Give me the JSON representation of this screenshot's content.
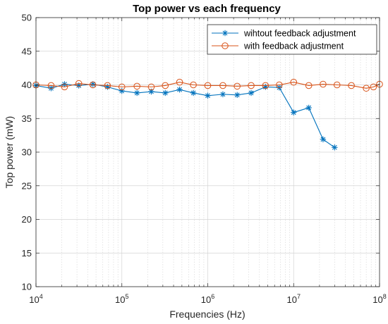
{
  "chart_data": {
    "type": "line",
    "title": "Top power vs each frequency",
    "xlabel": "Frequencies (Hz)",
    "ylabel": "Top power (mW)",
    "xscale": "log",
    "xlim": [
      10000,
      100000000
    ],
    "ylim": [
      10,
      50
    ],
    "yticks": [
      10,
      15,
      20,
      25,
      30,
      35,
      40,
      45,
      50
    ],
    "xtick_labels": [
      {
        "base": "10",
        "exp": "4"
      },
      {
        "base": "10",
        "exp": "5"
      },
      {
        "base": "10",
        "exp": "6"
      },
      {
        "base": "10",
        "exp": "7"
      },
      {
        "base": "10",
        "exp": "8"
      }
    ],
    "grid": true,
    "legend_position": "top-right",
    "series": [
      {
        "name": "wihtout feedback adjustment",
        "color": "#0072BD",
        "marker": "asterisk",
        "x": [
          10000,
          15000,
          21500,
          31500,
          46000,
          68000,
          100000,
          150000,
          220000,
          320000,
          470000,
          680000,
          1000000,
          1500000,
          2200000,
          3200000,
          4700000,
          6800000,
          10000000,
          15000000,
          22000000,
          30000000
        ],
        "y": [
          39.9,
          39.5,
          40.1,
          39.9,
          40.1,
          39.7,
          39.1,
          38.8,
          39.0,
          38.8,
          39.3,
          38.8,
          38.4,
          38.6,
          38.5,
          38.8,
          39.7,
          39.6,
          35.9,
          36.6,
          31.9,
          30.7
        ]
      },
      {
        "name": "with feedback adjustment",
        "color": "#D95319",
        "marker": "circle",
        "x": [
          10000,
          15000,
          21500,
          31500,
          46000,
          68000,
          100000,
          150000,
          220000,
          320000,
          470000,
          680000,
          1000000,
          1500000,
          2200000,
          3200000,
          4700000,
          6800000,
          10000000,
          15000000,
          22000000,
          32000000,
          47000000,
          70000000,
          85000000,
          100000000
        ],
        "y": [
          40.0,
          39.9,
          39.7,
          40.2,
          40.0,
          39.9,
          39.7,
          39.8,
          39.7,
          39.9,
          40.4,
          40.0,
          39.9,
          39.9,
          39.8,
          39.9,
          39.9,
          40.0,
          40.4,
          39.9,
          40.1,
          40.0,
          39.9,
          39.5,
          39.7,
          40.1
        ]
      }
    ]
  }
}
